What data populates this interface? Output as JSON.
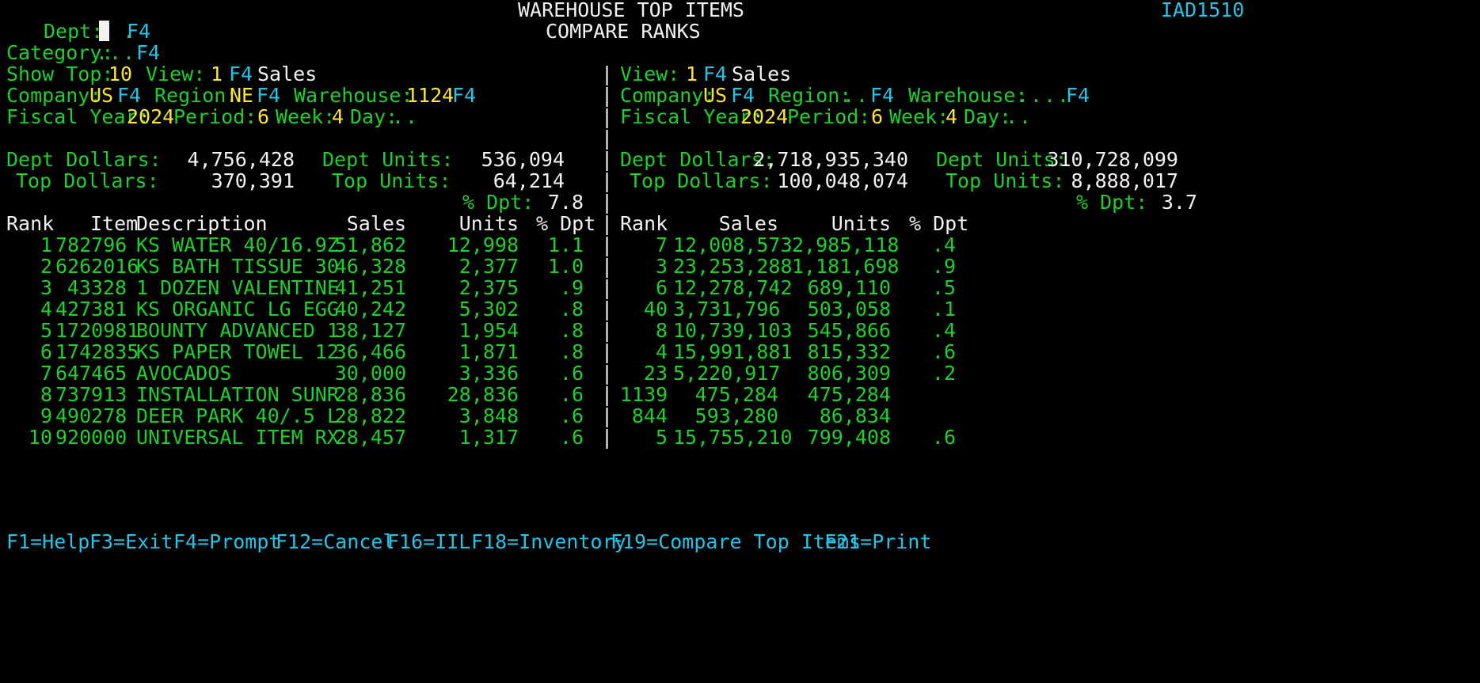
{
  "header": {
    "title": "WAREHOUSE TOP ITEMS",
    "subtitle": "COMPARE RANKS",
    "program_id": "IAD1510"
  },
  "filters": {
    "dept_label": "Dept:",
    "dept_value": "",
    "dept_prompt": "F4",
    "category_label": "Category:",
    "category_value": "...",
    "category_prompt": "F4",
    "show_top_label": "Show Top:",
    "show_top_value": "10",
    "left": {
      "view_label": "View:",
      "view_value": "1",
      "view_prompt": "F4",
      "view_name": "Sales",
      "company_label": "Company:",
      "company_value": "US",
      "company_prompt": "F4",
      "region_label": "Region:",
      "region_value": "NE",
      "region_prompt": "F4",
      "warehouse_label": "Warehouse:",
      "warehouse_value": "1124",
      "warehouse_prompt": "F4",
      "fiscal_year_label": "Fiscal Year:",
      "fiscal_year_value": "2024",
      "period_label": "Period:",
      "period_value": "6",
      "week_label": "Week:",
      "week_value": "4",
      "day_label": "Day:",
      "day_value": ".."
    },
    "right": {
      "view_label": "View:",
      "view_value": "1",
      "view_prompt": "F4",
      "view_name": "Sales",
      "company_label": "Company:",
      "company_value": "US",
      "company_prompt": "F4",
      "region_label": "Region:",
      "region_value": "..",
      "region_prompt": "F4",
      "warehouse_label": "Warehouse:",
      "warehouse_value": "....",
      "warehouse_prompt": "F4",
      "fiscal_year_label": "Fiscal Year:",
      "fiscal_year_value": "2024",
      "period_label": "Period:",
      "period_value": "6",
      "week_label": "Week:",
      "week_value": "4",
      "day_label": "Day:",
      "day_value": ".."
    }
  },
  "totals": {
    "left": {
      "dept_dollars_label": "Dept Dollars:",
      "dept_dollars": "4,756,428",
      "dept_units_label": "Dept Units:",
      "dept_units": "536,094",
      "top_dollars_label": "Top Dollars:",
      "top_dollars": "370,391",
      "top_units_label": "Top Units:",
      "top_units": "64,214",
      "pct_dpt_label": "% Dpt:",
      "pct_dpt": "7.8"
    },
    "right": {
      "dept_dollars_label": "Dept Dollars:",
      "dept_dollars": "2,718,935,340",
      "dept_units_label": "Dept Units:",
      "dept_units": "310,728,099",
      "top_dollars_label": "Top Dollars:",
      "top_dollars": "100,048,074",
      "top_units_label": "Top Units:",
      "top_units": "8,888,017",
      "pct_dpt_label": "% Dpt:",
      "pct_dpt": "3.7"
    }
  },
  "table": {
    "left_headers": {
      "rank": "Rank",
      "item": "Item",
      "description": "Description",
      "sales": "Sales",
      "units": "Units",
      "pct": "% Dpt"
    },
    "right_headers": {
      "rank": "Rank",
      "sales": "Sales",
      "units": "Units",
      "pct": "% Dpt"
    },
    "rows": [
      {
        "rank": "1",
        "item": "782796",
        "description": "KS WATER 40/16.9Z",
        "sales": "51,862",
        "units": "12,998",
        "pct": "1.1",
        "cmp_rank": "7",
        "cmp_sales": "12,008,573",
        "cmp_units": "2,985,118",
        "cmp_pct": ".4"
      },
      {
        "rank": "2",
        "item": "6262016",
        "description": "KS BATH TISSUE 30",
        "sales": "46,328",
        "units": "2,377",
        "pct": "1.0",
        "cmp_rank": "3",
        "cmp_sales": "23,253,288",
        "cmp_units": "1,181,698",
        "cmp_pct": ".9"
      },
      {
        "rank": "3",
        "item": "43328",
        "description": "1 DOZEN VALENTINE",
        "sales": "41,251",
        "units": "2,375",
        "pct": ".9",
        "cmp_rank": "6",
        "cmp_sales": "12,278,742",
        "cmp_units": "689,110",
        "cmp_pct": ".5"
      },
      {
        "rank": "4",
        "item": "427381",
        "description": "KS ORGANIC LG EGG",
        "sales": "40,242",
        "units": "5,302",
        "pct": ".8",
        "cmp_rank": "40",
        "cmp_sales": "3,731,796",
        "cmp_units": "503,058",
        "cmp_pct": ".1"
      },
      {
        "rank": "5",
        "item": "1720981",
        "description": "BOUNTY ADVANCED 1",
        "sales": "38,127",
        "units": "1,954",
        "pct": ".8",
        "cmp_rank": "8",
        "cmp_sales": "10,739,103",
        "cmp_units": "545,866",
        "cmp_pct": ".4"
      },
      {
        "rank": "6",
        "item": "1742835",
        "description": "KS PAPER TOWEL 12",
        "sales": "36,466",
        "units": "1,871",
        "pct": ".8",
        "cmp_rank": "4",
        "cmp_sales": "15,991,881",
        "cmp_units": "815,332",
        "cmp_pct": ".6"
      },
      {
        "rank": "7",
        "item": "647465",
        "description": "AVOCADOS",
        "sales": "30,000",
        "units": "3,336",
        "pct": ".6",
        "cmp_rank": "23",
        "cmp_sales": "5,220,917",
        "cmp_units": "806,309",
        "cmp_pct": ".2"
      },
      {
        "rank": "8",
        "item": "737913",
        "description": "INSTALLATION SUNR",
        "sales": "28,836",
        "units": "28,836",
        "pct": ".6",
        "cmp_rank": "1139",
        "cmp_sales": "475,284",
        "cmp_units": "475,284",
        "cmp_pct": ""
      },
      {
        "rank": "9",
        "item": "490278",
        "description": "DEER PARK 40/.5 L",
        "sales": "28,822",
        "units": "3,848",
        "pct": ".6",
        "cmp_rank": "844",
        "cmp_sales": "593,280",
        "cmp_units": "86,834",
        "cmp_pct": ""
      },
      {
        "rank": "10",
        "item": "920000",
        "description": "UNIVERSAL ITEM RX",
        "sales": "28,457",
        "units": "1,317",
        "pct": ".6",
        "cmp_rank": "5",
        "cmp_sales": "15,755,210",
        "cmp_units": "799,408",
        "cmp_pct": ".6"
      }
    ]
  },
  "function_keys": [
    {
      "key": "F1=Help"
    },
    {
      "key": "F3=Exit"
    },
    {
      "key": "F4=Prompt"
    },
    {
      "key": "F12=Cancel"
    },
    {
      "key": "F16=IIL"
    },
    {
      "key": "F18=Inventory"
    },
    {
      "key": "F19=Compare Top Items"
    },
    {
      "key": "F21=Print"
    }
  ],
  "colors": {
    "background": "#000000",
    "label_green": "#1ed12a",
    "prompt_blue": "#25c4e6",
    "input_yellow": "#ffe62e",
    "text_white": "#f2f2f2"
  }
}
